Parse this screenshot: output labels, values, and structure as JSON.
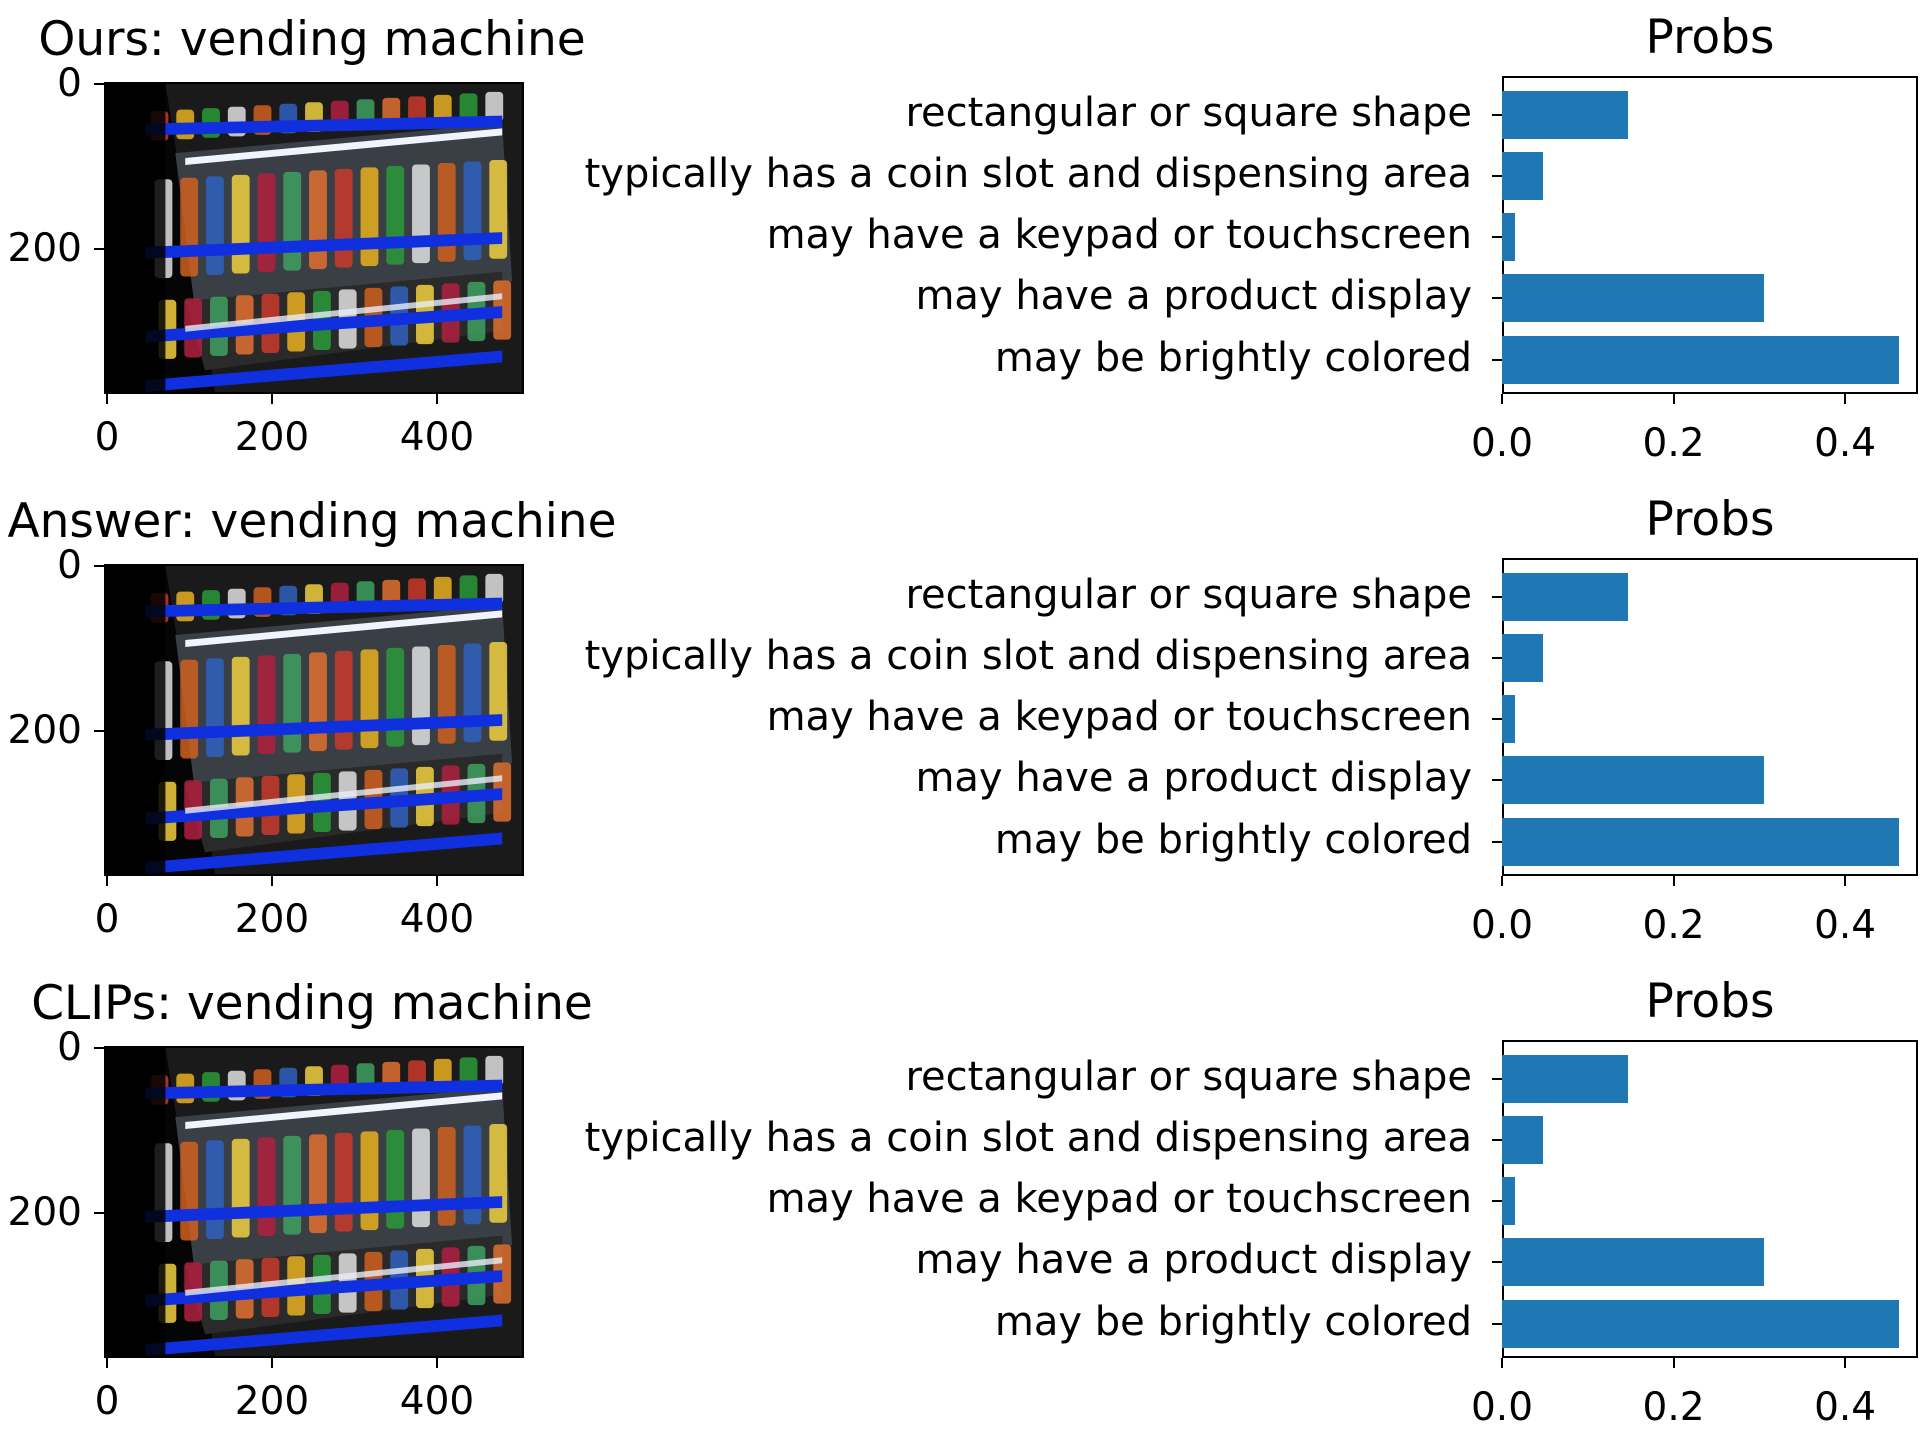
{
  "rows": [
    {
      "image_title": "Ours: vending machine",
      "chart_title": "Probs"
    },
    {
      "image_title": "Answer: vending machine",
      "chart_title": "Probs"
    },
    {
      "image_title": "CLIPs: vending machine",
      "chart_title": "Probs"
    }
  ],
  "image_axes": {
    "x_ticks": [
      "0",
      "200",
      "400"
    ],
    "y_ticks": [
      "0",
      "200"
    ]
  },
  "colors": {
    "bar": "#1f77b4"
  },
  "chart_data": [
    {
      "type": "bar",
      "orientation": "horizontal",
      "title": "Probs",
      "categories": [
        "rectangular or square shape",
        "typically has a coin slot and dispensing area",
        "may have a keypad or touchscreen",
        "may have a product display",
        "may be brightly colored"
      ],
      "values": [
        0.147,
        0.048,
        0.015,
        0.306,
        0.463
      ],
      "xlim": [
        0,
        0.485
      ],
      "x_ticks": [
        "0.0",
        "0.2",
        "0.4"
      ]
    },
    {
      "type": "bar",
      "orientation": "horizontal",
      "title": "Probs",
      "categories": [
        "rectangular or square shape",
        "typically has a coin slot and dispensing area",
        "may have a keypad or touchscreen",
        "may have a product display",
        "may be brightly colored"
      ],
      "values": [
        0.147,
        0.048,
        0.015,
        0.306,
        0.463
      ],
      "xlim": [
        0,
        0.485
      ],
      "x_ticks": [
        "0.0",
        "0.2",
        "0.4"
      ]
    },
    {
      "type": "bar",
      "orientation": "horizontal",
      "title": "Probs",
      "categories": [
        "rectangular or square shape",
        "typically has a coin slot and dispensing area",
        "may have a keypad or touchscreen",
        "may have a product display",
        "may be brightly colored"
      ],
      "values": [
        0.147,
        0.048,
        0.015,
        0.306,
        0.463
      ],
      "xlim": [
        0,
        0.485
      ],
      "x_ticks": [
        "0.0",
        "0.2",
        "0.4"
      ]
    }
  ]
}
